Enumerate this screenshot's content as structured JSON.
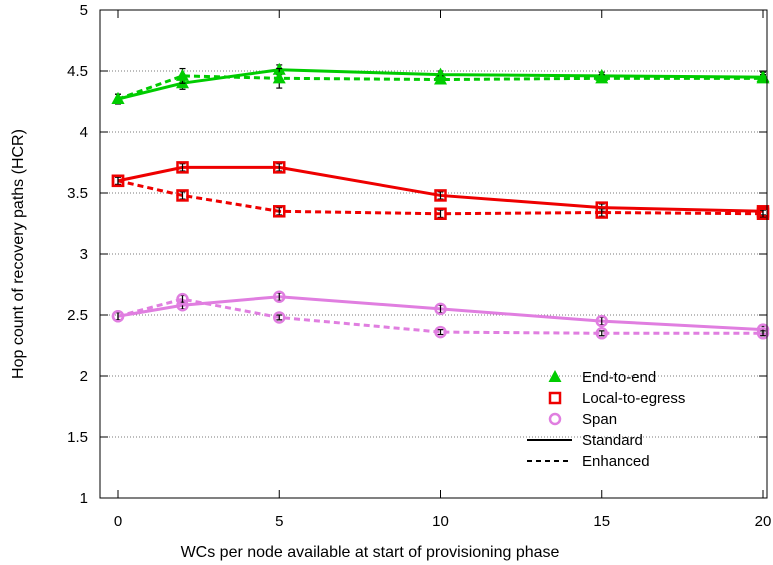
{
  "chart_data": {
    "type": "line",
    "title": "",
    "xlabel": "WCs per node available at start of provisioning phase",
    "ylabel": "Hop count of recovery paths (HCR)",
    "x": [
      0,
      2,
      5,
      10,
      15,
      20
    ],
    "xticks": [
      0,
      5,
      10,
      15,
      20
    ],
    "xtick_labels": [
      "0",
      "5",
      "10",
      "15",
      "20"
    ],
    "yticks": [
      1,
      1.5,
      2,
      2.5,
      3,
      3.5,
      4,
      4.5,
      5
    ],
    "ytick_labels": [
      "1",
      "1.5",
      "2",
      "2.5",
      "3",
      "3.5",
      "4",
      "4.5",
      "5"
    ],
    "xlim": [
      0,
      20
    ],
    "ylim": [
      1,
      5
    ],
    "grid": "horizontal dotted",
    "legend_position": "bottom-right",
    "series": [
      {
        "group": "end-to-end",
        "variant": "standard",
        "color": "#00cc00",
        "marker": "triangle",
        "values": [
          4.27,
          4.4,
          4.51,
          4.47,
          4.46,
          4.45
        ],
        "errors": [
          0.04,
          0.05,
          0.04,
          0.03,
          0.03,
          0.04
        ]
      },
      {
        "group": "end-to-end",
        "variant": "enhanced",
        "color": "#00cc00",
        "marker": "triangle",
        "values": [
          4.27,
          4.46,
          4.44,
          4.43,
          4.44,
          4.44
        ],
        "errors": [
          0.04,
          0.06,
          0.08,
          0.03,
          0.03,
          0.03
        ]
      },
      {
        "group": "local-to-egress",
        "variant": "standard",
        "color": "#ee0000",
        "marker": "square",
        "values": [
          3.6,
          3.71,
          3.71,
          3.48,
          3.38,
          3.35
        ],
        "errors": [
          0.03,
          0.03,
          0.03,
          0.03,
          0.03,
          0.03
        ]
      },
      {
        "group": "local-to-egress",
        "variant": "enhanced",
        "color": "#ee0000",
        "marker": "square",
        "values": [
          3.6,
          3.48,
          3.35,
          3.33,
          3.34,
          3.33
        ],
        "errors": [
          0.03,
          0.03,
          0.03,
          0.03,
          0.03,
          0.03
        ]
      },
      {
        "group": "span",
        "variant": "standard",
        "color": "#e07ee0",
        "marker": "circle",
        "values": [
          2.49,
          2.58,
          2.65,
          2.55,
          2.45,
          2.38
        ],
        "errors": [
          0.03,
          0.03,
          0.03,
          0.03,
          0.03,
          0.03
        ]
      },
      {
        "group": "span",
        "variant": "enhanced",
        "color": "#e07ee0",
        "marker": "circle",
        "values": [
          2.49,
          2.63,
          2.48,
          2.36,
          2.35,
          2.35
        ],
        "errors": [
          0.03,
          0.03,
          0.02,
          0.02,
          0.02,
          0.02
        ]
      }
    ],
    "legend": {
      "entries": [
        {
          "label": "End-to-end",
          "kind": "marker",
          "marker": "triangle",
          "color": "#00cc00"
        },
        {
          "label": "Local-to-egress",
          "kind": "marker",
          "marker": "square",
          "color": "#ee0000"
        },
        {
          "label": "Span",
          "kind": "marker",
          "marker": "circle",
          "color": "#e07ee0"
        },
        {
          "label": "Standard",
          "kind": "line",
          "style": "solid",
          "color": "#000000"
        },
        {
          "label": "Enhanced",
          "kind": "line",
          "style": "dashed",
          "color": "#000000"
        }
      ]
    }
  }
}
